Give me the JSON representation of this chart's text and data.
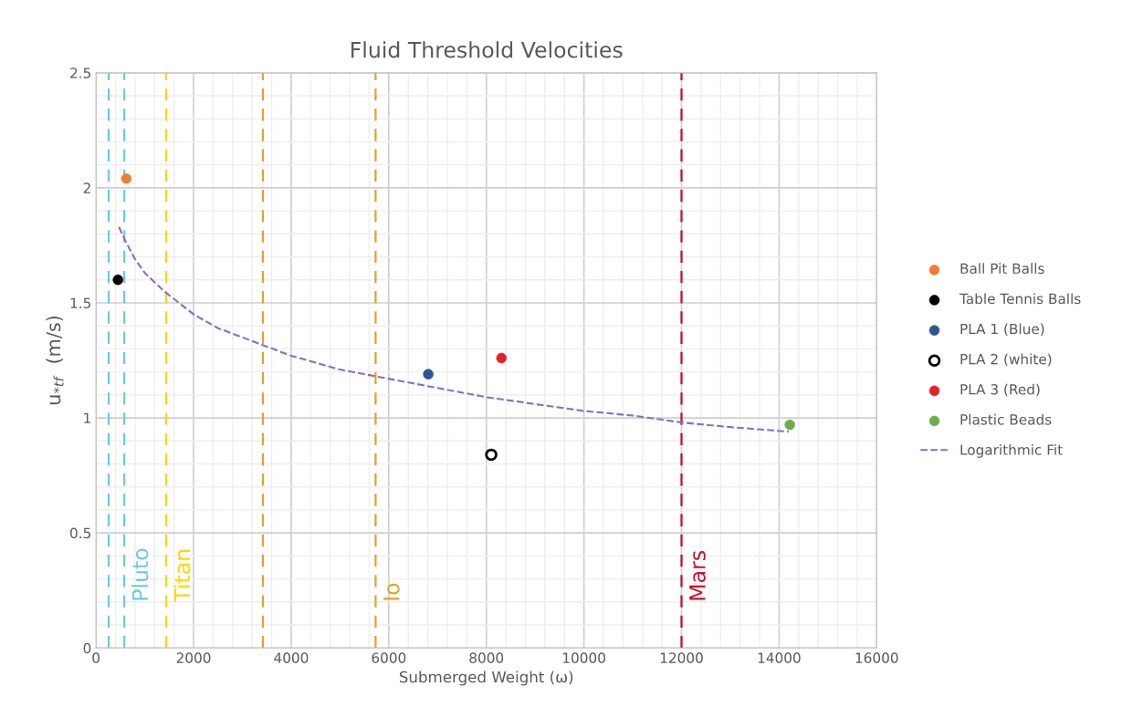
{
  "chart_data": {
    "type": "scatter",
    "title": "Fluid Threshold Velocities",
    "xlabel": "Submerged Weight (ω)",
    "ylabel": "u$_{*tf}$  (m/s)",
    "xlim": [
      0,
      16000
    ],
    "xticks": [
      0,
      2000,
      4000,
      6000,
      8000,
      10000,
      12000,
      14000,
      16000
    ],
    "ylim": [
      0,
      2.5
    ],
    "yticks": [
      0,
      0.5,
      1,
      1.5,
      2,
      2.5
    ],
    "grid": true,
    "legend": "right",
    "marker": "circle",
    "series": [
      {
        "name": "Ball Pit Balls",
        "color": "#ed7d31",
        "x": [
          620
        ],
        "values": [
          2.04
        ]
      },
      {
        "name": "Table Tennis Balls",
        "color": "#000000",
        "x": [
          450
        ],
        "values": [
          1.6
        ]
      },
      {
        "name": "PLA 1 (Blue)",
        "color": "#2f5597",
        "x": [
          6810
        ],
        "values": [
          1.19
        ]
      },
      {
        "name": "PLA 2 (white)",
        "color": "#ffffff",
        "x": [
          8100
        ],
        "values": [
          0.84
        ]
      },
      {
        "name": "PLA 3 (Red)",
        "color": "#e8202a",
        "x": [
          8310
        ],
        "values": [
          1.26
        ]
      },
      {
        "name": "Plastic Beads",
        "color": "#70ad47",
        "x": [
          14220
        ],
        "values": [
          0.97
        ]
      },
      {
        "name": "Logarithmic Fit",
        "type": "line",
        "color": "#8e6bbf",
        "line_style": "dashed",
        "marker": "none",
        "x": [
          470,
          600,
          800,
          1000,
          1400,
          2000,
          2500,
          3000,
          4000,
          5000,
          6000,
          7000,
          8000,
          9000,
          10000,
          11000,
          12000,
          13000,
          14200
        ],
        "values": [
          1.83,
          1.77,
          1.69,
          1.63,
          1.55,
          1.45,
          1.39,
          1.35,
          1.27,
          1.21,
          1.17,
          1.13,
          1.09,
          1.06,
          1.03,
          1.01,
          0.98,
          0.96,
          0.94
        ]
      }
    ],
    "ref_lines": [
      {
        "axis": "x",
        "value": 260,
        "label": null,
        "color": "#6fc8e0",
        "line_style": "dashed"
      },
      {
        "axis": "x",
        "value": 580,
        "label": "Pluto",
        "color": "#6fc8e0",
        "line_style": "dashed"
      },
      {
        "axis": "x",
        "value": 1440,
        "label": "Titan",
        "color": "#ffd700",
        "line_style": "dashed"
      },
      {
        "axis": "x",
        "value": 3420,
        "label": null,
        "color": "#dba530",
        "line_style": "dashed"
      },
      {
        "axis": "x",
        "value": 5730,
        "label": "Io",
        "color": "#dba530",
        "line_style": "dashed"
      },
      {
        "axis": "x",
        "value": 12000,
        "label": "Mars",
        "color": "#c8102e",
        "line_style": "dashed"
      }
    ]
  }
}
